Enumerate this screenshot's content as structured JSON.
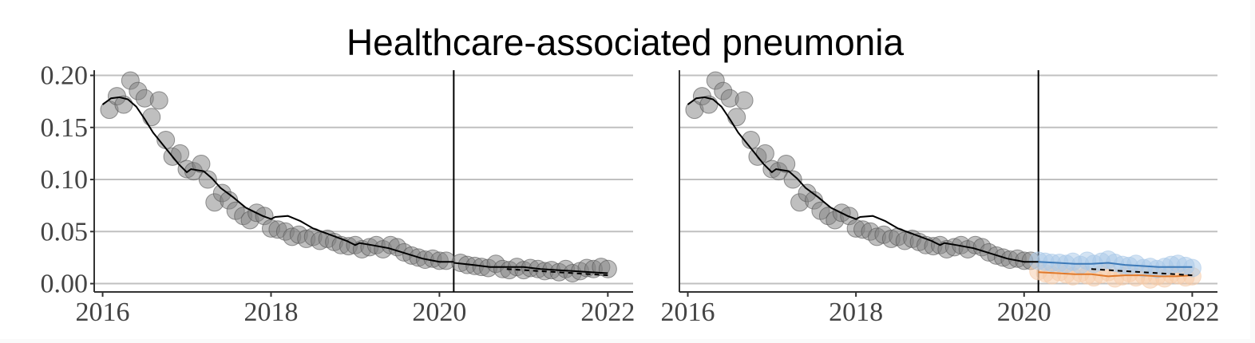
{
  "chart_data": {
    "type": "scatter",
    "title": "Healthcare-associated pneumonia",
    "xlim": [
      2015.9,
      2022.3
    ],
    "ylim": [
      -0.008,
      0.205
    ],
    "xticks": [
      2016,
      2018,
      2020,
      2022
    ],
    "xtick_labels": [
      "2016",
      "2018",
      "2020",
      "2022"
    ],
    "yticks": [
      0.0,
      0.05,
      0.1,
      0.15,
      0.2
    ],
    "ytick_labels": [
      "0.00",
      "0.05",
      "0.10",
      "0.15",
      "0.20"
    ],
    "grid": "horizontal",
    "legend": "none",
    "intervention_x": 2020.17,
    "colors": {
      "points": "#808080",
      "fit": "#000000",
      "counterfactual": "#000000",
      "series_blue": "#3d7ab8",
      "series_orange": "#e07a2c",
      "blue_points": "#a8c8e8",
      "orange_points": "#f5c9a6",
      "grid": "#c0c0c0"
    },
    "observed": {
      "x": [
        2016.08,
        2016.17,
        2016.25,
        2016.33,
        2016.42,
        2016.5,
        2016.58,
        2016.67,
        2016.75,
        2016.83,
        2016.92,
        2017.0,
        2017.08,
        2017.17,
        2017.25,
        2017.33,
        2017.42,
        2017.5,
        2017.58,
        2017.67,
        2017.75,
        2017.83,
        2017.92,
        2018.0,
        2018.08,
        2018.17,
        2018.25,
        2018.33,
        2018.42,
        2018.5,
        2018.58,
        2018.67,
        2018.75,
        2018.83,
        2018.92,
        2019.0,
        2019.08,
        2019.17,
        2019.25,
        2019.33,
        2019.42,
        2019.5,
        2019.58,
        2019.67,
        2019.75,
        2019.83,
        2019.92,
        2020.0,
        2020.08
      ],
      "y": [
        0.167,
        0.18,
        0.172,
        0.195,
        0.185,
        0.178,
        0.16,
        0.176,
        0.138,
        0.122,
        0.125,
        0.11,
        0.108,
        0.115,
        0.1,
        0.078,
        0.087,
        0.08,
        0.07,
        0.065,
        0.061,
        0.068,
        0.065,
        0.053,
        0.052,
        0.05,
        0.045,
        0.047,
        0.043,
        0.045,
        0.041,
        0.043,
        0.04,
        0.037,
        0.036,
        0.037,
        0.033,
        0.035,
        0.037,
        0.033,
        0.037,
        0.035,
        0.03,
        0.027,
        0.025,
        0.023,
        0.024,
        0.022,
        0.022
      ]
    },
    "fit": {
      "x": [
        2016.0,
        2016.1,
        2016.2,
        2016.3,
        2016.4,
        2016.5,
        2016.6,
        2016.75,
        2016.9,
        2017.0,
        2017.05,
        2017.2,
        2017.3,
        2017.4,
        2017.55,
        2017.7,
        2017.9,
        2018.0,
        2018.05,
        2018.2,
        2018.35,
        2018.5,
        2018.7,
        2018.9,
        2019.0,
        2019.05,
        2019.2,
        2019.4,
        2019.6,
        2019.8,
        2020.0,
        2020.17
      ],
      "y": [
        0.172,
        0.178,
        0.179,
        0.177,
        0.17,
        0.158,
        0.145,
        0.13,
        0.115,
        0.107,
        0.11,
        0.108,
        0.101,
        0.092,
        0.083,
        0.073,
        0.065,
        0.062,
        0.064,
        0.065,
        0.06,
        0.053,
        0.047,
        0.041,
        0.037,
        0.039,
        0.037,
        0.034,
        0.029,
        0.024,
        0.021,
        0.021
      ]
    },
    "panels": [
      {
        "post_points": {
          "x": [
            2020.25,
            2020.33,
            2020.42,
            2020.5,
            2020.58,
            2020.67,
            2020.75,
            2020.83,
            2020.92,
            2021.0,
            2021.08,
            2021.17,
            2021.25,
            2021.33,
            2021.42,
            2021.5,
            2021.58,
            2021.67,
            2021.75,
            2021.83,
            2021.92,
            2022.0
          ],
          "y": [
            0.02,
            0.018,
            0.017,
            0.016,
            0.015,
            0.019,
            0.014,
            0.013,
            0.016,
            0.013,
            0.015,
            0.014,
            0.012,
            0.013,
            0.011,
            0.014,
            0.01,
            0.012,
            0.015,
            0.014,
            0.016,
            0.014
          ]
        },
        "post_fit": {
          "x": [
            2020.17,
            2020.4,
            2020.6,
            2020.8,
            2021.0,
            2021.2,
            2021.4,
            2021.6,
            2021.8,
            2022.0
          ],
          "y": [
            0.02,
            0.018,
            0.016,
            0.016,
            0.016,
            0.014,
            0.013,
            0.012,
            0.011,
            0.01
          ]
        },
        "counterfactual": {
          "x": [
            2020.8,
            2021.0,
            2021.2,
            2021.4,
            2021.6,
            2021.8,
            2022.0
          ],
          "y": [
            0.014,
            0.013,
            0.012,
            0.011,
            0.01,
            0.009,
            0.008
          ]
        }
      },
      {
        "blue_points": {
          "x": [
            2020.17,
            2020.25,
            2020.33,
            2020.42,
            2020.5,
            2020.58,
            2020.67,
            2020.75,
            2020.83,
            2020.92,
            2021.0,
            2021.08,
            2021.17,
            2021.25,
            2021.33,
            2021.42,
            2021.5,
            2021.58,
            2021.67,
            2021.75,
            2021.83,
            2021.92,
            2022.0
          ],
          "y": [
            0.022,
            0.021,
            0.02,
            0.02,
            0.019,
            0.021,
            0.018,
            0.022,
            0.019,
            0.021,
            0.023,
            0.02,
            0.018,
            0.017,
            0.019,
            0.015,
            0.016,
            0.014,
            0.016,
            0.018,
            0.019,
            0.017,
            0.015
          ]
        },
        "blue_fit": {
          "x": [
            2020.17,
            2020.4,
            2020.6,
            2020.8,
            2021.0,
            2021.2,
            2021.4,
            2021.6,
            2021.8,
            2022.0
          ],
          "y": [
            0.021,
            0.02,
            0.019,
            0.019,
            0.02,
            0.018,
            0.017,
            0.016,
            0.016,
            0.016
          ]
        },
        "orange_points": {
          "x": [
            2020.17,
            2020.25,
            2020.33,
            2020.42,
            2020.5,
            2020.58,
            2020.67,
            2020.75,
            2020.83,
            2020.92,
            2021.0,
            2021.08,
            2021.17,
            2021.25,
            2021.33,
            2021.42,
            2021.5,
            2021.58,
            2021.67,
            2021.75,
            2021.83,
            2021.92,
            2022.0
          ],
          "y": [
            0.012,
            0.01,
            0.008,
            0.011,
            0.009,
            0.007,
            0.01,
            0.008,
            0.006,
            0.009,
            0.011,
            0.005,
            0.007,
            0.01,
            0.006,
            0.008,
            0.004,
            0.007,
            0.005,
            0.009,
            0.008,
            0.006,
            0.007
          ]
        },
        "orange_fit": {
          "x": [
            2020.17,
            2020.4,
            2020.6,
            2020.8,
            2021.0,
            2021.2,
            2021.4,
            2021.6,
            2021.8,
            2022.0
          ],
          "y": [
            0.011,
            0.01,
            0.009,
            0.009,
            0.007,
            0.008,
            0.008,
            0.007,
            0.007,
            0.008
          ]
        },
        "counterfactual": {
          "x": [
            2020.8,
            2021.0,
            2021.2,
            2021.4,
            2021.6,
            2021.8,
            2022.0
          ],
          "y": [
            0.014,
            0.013,
            0.012,
            0.011,
            0.01,
            0.009,
            0.008
          ]
        }
      }
    ]
  }
}
